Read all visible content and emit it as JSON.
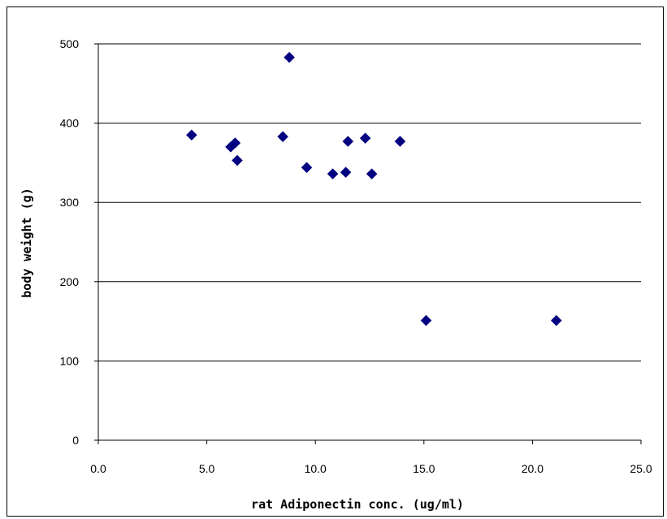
{
  "chart_data": {
    "type": "scatter",
    "xlabel": "rat Adiponectin conc. (ug/ml)",
    "ylabel": "body weight (g)",
    "xlim": [
      0,
      25
    ],
    "ylim": [
      0,
      500
    ],
    "x_ticks": [
      "0.0",
      "5.0",
      "10.0",
      "15.0",
      "20.0",
      "25.0"
    ],
    "y_ticks": [
      "0",
      "100",
      "200",
      "300",
      "400",
      "500"
    ],
    "x_tick_values": [
      0,
      5,
      10,
      15,
      20,
      25
    ],
    "y_tick_values": [
      0,
      100,
      200,
      300,
      400,
      500
    ],
    "grid": "horizontal major gridlines",
    "legend": "none",
    "marker": "diamond",
    "marker_color": "#000080",
    "points": [
      {
        "x": 4.3,
        "y": 385
      },
      {
        "x": 6.1,
        "y": 370
      },
      {
        "x": 6.3,
        "y": 375
      },
      {
        "x": 6.4,
        "y": 353
      },
      {
        "x": 8.5,
        "y": 383
      },
      {
        "x": 8.8,
        "y": 483
      },
      {
        "x": 9.6,
        "y": 344
      },
      {
        "x": 10.8,
        "y": 336
      },
      {
        "x": 11.4,
        "y": 338
      },
      {
        "x": 11.5,
        "y": 377
      },
      {
        "x": 12.3,
        "y": 381
      },
      {
        "x": 12.6,
        "y": 336
      },
      {
        "x": 13.9,
        "y": 377
      },
      {
        "x": 15.1,
        "y": 151
      },
      {
        "x": 21.1,
        "y": 151
      }
    ]
  }
}
